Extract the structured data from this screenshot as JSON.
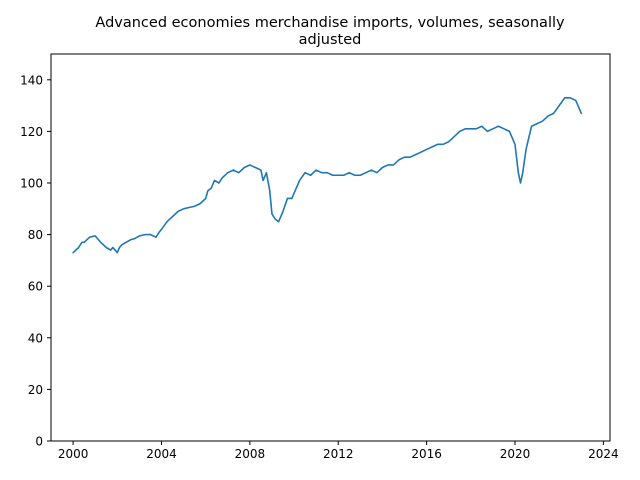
{
  "chart_data": {
    "type": "line",
    "title_line1": "Advanced economies merchandise imports, volumes, seasonally",
    "title_line2": "adjusted",
    "xlabel": "",
    "ylabel": "",
    "xlim": [
      1999,
      2024.3
    ],
    "ylim": [
      0,
      150
    ],
    "xticks": [
      2000,
      2004,
      2008,
      2012,
      2016,
      2020,
      2024
    ],
    "yticks": [
      0,
      20,
      40,
      60,
      80,
      100,
      120,
      140
    ],
    "grid": false,
    "legend": "none",
    "series": [
      {
        "color": "#1f77b4",
        "x": [
          2000.0,
          2000.25,
          2000.4,
          2000.5,
          2000.75,
          2001.0,
          2001.1,
          2001.25,
          2001.5,
          2001.7,
          2001.8,
          2001.9,
          2002.0,
          2002.1,
          2002.2,
          2002.4,
          2002.6,
          2002.8,
          2003.0,
          2003.25,
          2003.5,
          2003.75,
          2003.9,
          2004.0,
          2004.25,
          2004.5,
          2004.75,
          2005.0,
          2005.25,
          2005.5,
          2005.75,
          2006.0,
          2006.1,
          2006.25,
          2006.4,
          2006.6,
          2006.75,
          2007.0,
          2007.25,
          2007.5,
          2007.75,
          2008.0,
          2008.25,
          2008.5,
          2008.6,
          2008.75,
          2008.9,
          2009.0,
          2009.15,
          2009.3,
          2009.4,
          2009.5,
          2009.7,
          2009.9,
          2010.0,
          2010.25,
          2010.5,
          2010.75,
          2011.0,
          2011.25,
          2011.5,
          2011.75,
          2012.0,
          2012.25,
          2012.5,
          2012.75,
          2013.0,
          2013.25,
          2013.5,
          2013.75,
          2014.0,
          2014.25,
          2014.5,
          2014.75,
          2015.0,
          2015.25,
          2015.5,
          2015.75,
          2016.0,
          2016.25,
          2016.5,
          2016.75,
          2017.0,
          2017.25,
          2017.5,
          2017.75,
          2018.0,
          2018.25,
          2018.5,
          2018.75,
          2019.0,
          2019.25,
          2019.5,
          2019.75,
          2020.0,
          2020.15,
          2020.25,
          2020.35,
          2020.5,
          2020.75,
          2021.0,
          2021.25,
          2021.5,
          2021.75,
          2022.0,
          2022.25,
          2022.5,
          2022.75,
          2023.0
        ],
        "y": [
          73,
          75,
          77,
          77,
          79,
          79.5,
          78.5,
          77,
          75,
          74,
          75,
          74,
          73,
          75,
          76,
          77,
          78,
          78.5,
          79.5,
          80,
          80,
          79,
          81,
          82,
          85,
          87,
          89,
          90,
          90.5,
          91,
          92,
          94,
          97,
          98,
          101,
          100,
          102,
          104,
          105,
          104,
          106,
          107,
          106,
          105,
          101,
          104,
          97,
          88,
          86,
          85,
          87,
          89,
          94,
          94,
          96,
          101,
          104,
          103,
          105,
          104,
          104,
          103,
          103,
          103,
          104,
          103,
          103,
          104,
          105,
          104,
          106,
          107,
          107,
          109,
          110,
          110,
          111,
          112,
          113,
          114,
          115,
          115,
          116,
          118,
          120,
          121,
          121,
          121,
          122,
          120,
          121,
          122,
          121,
          120,
          115,
          104,
          100,
          104,
          113,
          122,
          123,
          124,
          126,
          127,
          130,
          133,
          133,
          132,
          127
        ]
      }
    ]
  }
}
